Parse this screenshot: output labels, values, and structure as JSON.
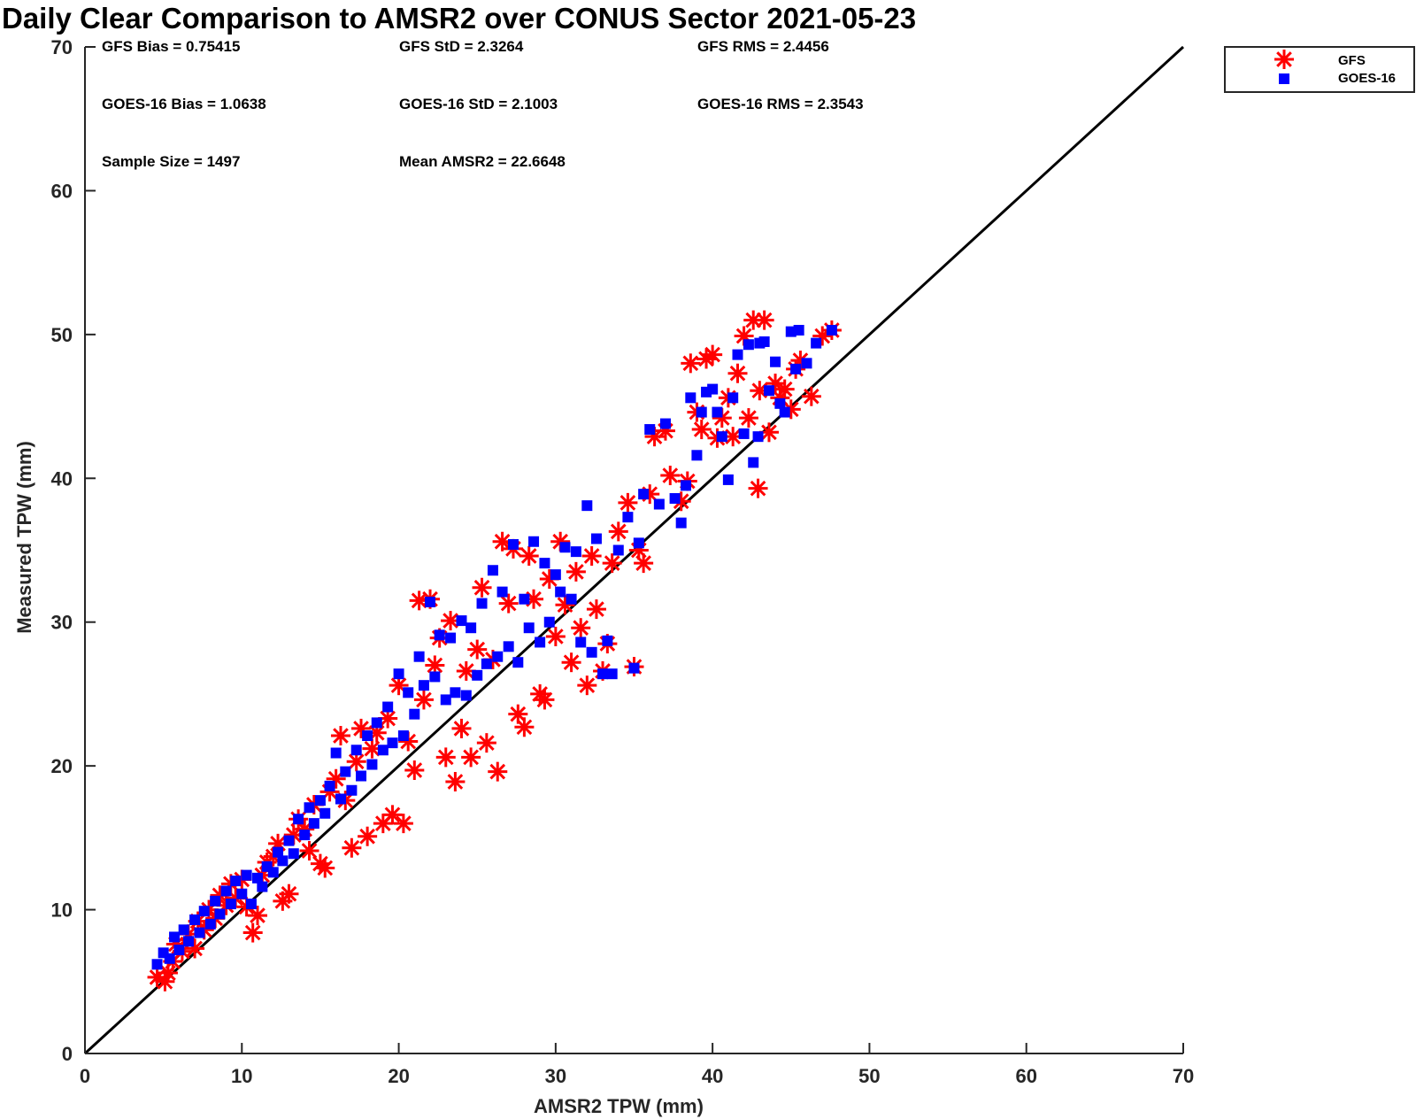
{
  "chart_data": {
    "type": "scatter",
    "title": "Daily Clear Comparison to AMSR2 over CONUS Sector 2021-05-23",
    "xlabel": "AMSR2 TPW (mm)",
    "ylabel": "Measured TPW (mm)",
    "xlim": [
      0,
      70
    ],
    "ylim": [
      0,
      70
    ],
    "xticks": [
      0,
      10,
      20,
      30,
      40,
      50,
      60,
      70
    ],
    "yticks": [
      0,
      10,
      20,
      30,
      40,
      50,
      60,
      70
    ],
    "grid": false,
    "legend_position": "outside-top-right",
    "reference_line": {
      "x": [
        0,
        70
      ],
      "y": [
        0,
        70
      ],
      "color": "#000000"
    },
    "stats": [
      {
        "text": "GFS Bias = 0.75415",
        "row": 0,
        "col": 0
      },
      {
        "text": "GFS StD = 2.3264",
        "row": 0,
        "col": 1
      },
      {
        "text": "GFS RMS = 2.4456",
        "row": 0,
        "col": 2
      },
      {
        "text": "GOES-16 Bias = 1.0638",
        "row": 1,
        "col": 0
      },
      {
        "text": "GOES-16 StD = 2.1003",
        "row": 1,
        "col": 1
      },
      {
        "text": "GOES-16 RMS = 2.3543",
        "row": 1,
        "col": 2
      },
      {
        "text": "Sample Size = 1497",
        "row": 2,
        "col": 0
      },
      {
        "text": "Mean AMSR2 = 22.6648",
        "row": 2,
        "col": 1
      }
    ],
    "series": [
      {
        "name": "GFS",
        "marker": "asterisk",
        "color": "#ff0000",
        "points": [
          [
            4.6,
            5.3
          ],
          [
            5.1,
            5.0
          ],
          [
            5.3,
            5.6
          ],
          [
            5.6,
            6.4
          ],
          [
            5.8,
            7.6
          ],
          [
            6.2,
            7.1
          ],
          [
            6.6,
            8.3
          ],
          [
            7.0,
            7.3
          ],
          [
            7.2,
            9.2
          ],
          [
            7.6,
            8.6
          ],
          [
            7.9,
            10.0
          ],
          [
            8.3,
            9.4
          ],
          [
            8.6,
            11.0
          ],
          [
            9.0,
            10.3
          ],
          [
            9.3,
            11.8
          ],
          [
            9.6,
            10.8
          ],
          [
            10.0,
            12.1
          ],
          [
            10.3,
            10.2
          ],
          [
            10.7,
            8.4
          ],
          [
            11.0,
            9.6
          ],
          [
            11.3,
            12.4
          ],
          [
            11.6,
            13.3
          ],
          [
            12.0,
            13.7
          ],
          [
            12.3,
            14.6
          ],
          [
            12.6,
            10.6
          ],
          [
            13.0,
            11.1
          ],
          [
            13.3,
            15.2
          ],
          [
            13.6,
            16.3
          ],
          [
            14.0,
            15.6
          ],
          [
            14.3,
            14.1
          ],
          [
            14.6,
            17.3
          ],
          [
            15.0,
            13.2
          ],
          [
            15.3,
            12.9
          ],
          [
            15.6,
            18.2
          ],
          [
            16.0,
            19.1
          ],
          [
            16.3,
            22.1
          ],
          [
            16.6,
            17.6
          ],
          [
            17.0,
            14.3
          ],
          [
            17.3,
            20.3
          ],
          [
            17.6,
            22.6
          ],
          [
            18.0,
            15.1
          ],
          [
            18.3,
            21.2
          ],
          [
            18.6,
            22.3
          ],
          [
            19.0,
            16.0
          ],
          [
            19.3,
            23.3
          ],
          [
            19.6,
            16.6
          ],
          [
            20.0,
            25.6
          ],
          [
            20.3,
            16.0
          ],
          [
            20.6,
            21.7
          ],
          [
            21.0,
            19.7
          ],
          [
            21.3,
            31.5
          ],
          [
            21.6,
            24.6
          ],
          [
            22.0,
            31.6
          ],
          [
            22.3,
            27.0
          ],
          [
            22.6,
            28.9
          ],
          [
            23.0,
            20.6
          ],
          [
            23.3,
            30.1
          ],
          [
            23.6,
            18.9
          ],
          [
            24.0,
            22.6
          ],
          [
            24.3,
            26.6
          ],
          [
            24.6,
            20.6
          ],
          [
            25.0,
            28.1
          ],
          [
            25.3,
            32.4
          ],
          [
            25.6,
            21.6
          ],
          [
            26.0,
            27.4
          ],
          [
            26.3,
            19.6
          ],
          [
            26.6,
            35.6
          ],
          [
            27.0,
            31.3
          ],
          [
            27.3,
            35.1
          ],
          [
            27.6,
            23.6
          ],
          [
            28.0,
            22.7
          ],
          [
            28.3,
            34.6
          ],
          [
            28.6,
            31.6
          ],
          [
            29.0,
            25.0
          ],
          [
            29.3,
            24.6
          ],
          [
            29.6,
            33.0
          ],
          [
            30.0,
            29.0
          ],
          [
            30.3,
            35.6
          ],
          [
            30.6,
            31.2
          ],
          [
            31.0,
            27.2
          ],
          [
            31.3,
            33.5
          ],
          [
            31.6,
            29.6
          ],
          [
            32.0,
            25.6
          ],
          [
            32.3,
            34.6
          ],
          [
            32.6,
            30.9
          ],
          [
            33.0,
            26.6
          ],
          [
            33.3,
            28.5
          ],
          [
            33.6,
            34.1
          ],
          [
            34.0,
            36.3
          ],
          [
            34.6,
            38.3
          ],
          [
            35.0,
            26.9
          ],
          [
            35.3,
            35.0
          ],
          [
            35.6,
            34.1
          ],
          [
            36.0,
            38.9
          ],
          [
            36.3,
            42.9
          ],
          [
            37.0,
            43.3
          ],
          [
            37.3,
            40.2
          ],
          [
            38.0,
            38.4
          ],
          [
            38.4,
            39.8
          ],
          [
            38.6,
            48.0
          ],
          [
            39.0,
            44.6
          ],
          [
            39.3,
            43.4
          ],
          [
            39.6,
            48.3
          ],
          [
            40.0,
            48.6
          ],
          [
            40.3,
            42.8
          ],
          [
            40.6,
            44.2
          ],
          [
            41.0,
            45.6
          ],
          [
            41.3,
            42.9
          ],
          [
            41.6,
            47.3
          ],
          [
            42.0,
            49.9
          ],
          [
            42.3,
            44.2
          ],
          [
            42.6,
            51.0
          ],
          [
            42.9,
            39.3
          ],
          [
            43.0,
            46.1
          ],
          [
            43.3,
            51.0
          ],
          [
            43.6,
            43.2
          ],
          [
            44.0,
            46.6
          ],
          [
            44.3,
            45.6
          ],
          [
            44.6,
            46.2
          ],
          [
            45.0,
            44.8
          ],
          [
            45.3,
            47.6
          ],
          [
            45.6,
            48.2
          ],
          [
            46.3,
            45.7
          ],
          [
            47.0,
            49.9
          ],
          [
            47.6,
            50.3
          ]
        ]
      },
      {
        "name": "GOES-16",
        "marker": "square",
        "color": "#0000ff",
        "points": [
          [
            4.6,
            6.2
          ],
          [
            5.0,
            7.0
          ],
          [
            5.4,
            6.6
          ],
          [
            5.7,
            8.1
          ],
          [
            6.0,
            7.2
          ],
          [
            6.3,
            8.6
          ],
          [
            6.6,
            7.8
          ],
          [
            7.0,
            9.3
          ],
          [
            7.3,
            8.4
          ],
          [
            7.6,
            9.9
          ],
          [
            8.0,
            9.0
          ],
          [
            8.3,
            10.6
          ],
          [
            8.6,
            9.7
          ],
          [
            9.0,
            11.3
          ],
          [
            9.3,
            10.4
          ],
          [
            9.6,
            12.0
          ],
          [
            10.0,
            11.1
          ],
          [
            10.3,
            12.4
          ],
          [
            10.6,
            10.4
          ],
          [
            11.0,
            12.2
          ],
          [
            11.3,
            11.6
          ],
          [
            11.6,
            13.0
          ],
          [
            12.0,
            12.6
          ],
          [
            12.3,
            14.0
          ],
          [
            12.6,
            13.4
          ],
          [
            13.0,
            14.8
          ],
          [
            13.3,
            13.9
          ],
          [
            13.6,
            16.3
          ],
          [
            14.0,
            15.2
          ],
          [
            14.3,
            17.1
          ],
          [
            14.6,
            16.0
          ],
          [
            15.0,
            17.6
          ],
          [
            15.3,
            16.7
          ],
          [
            15.6,
            18.6
          ],
          [
            16.0,
            20.9
          ],
          [
            16.3,
            17.7
          ],
          [
            16.6,
            19.6
          ],
          [
            17.0,
            18.3
          ],
          [
            17.3,
            21.1
          ],
          [
            17.6,
            19.3
          ],
          [
            18.0,
            22.1
          ],
          [
            18.3,
            20.1
          ],
          [
            18.6,
            23.0
          ],
          [
            19.0,
            21.1
          ],
          [
            19.3,
            24.1
          ],
          [
            19.6,
            21.6
          ],
          [
            20.0,
            26.4
          ],
          [
            20.3,
            22.1
          ],
          [
            20.6,
            25.1
          ],
          [
            21.0,
            23.6
          ],
          [
            21.3,
            27.6
          ],
          [
            21.6,
            25.6
          ],
          [
            22.0,
            31.4
          ],
          [
            22.3,
            26.2
          ],
          [
            22.6,
            29.1
          ],
          [
            23.0,
            24.6
          ],
          [
            23.3,
            28.9
          ],
          [
            23.6,
            25.1
          ],
          [
            24.0,
            30.1
          ],
          [
            24.3,
            24.9
          ],
          [
            24.6,
            29.6
          ],
          [
            25.0,
            26.3
          ],
          [
            25.3,
            31.3
          ],
          [
            25.6,
            27.1
          ],
          [
            26.0,
            33.6
          ],
          [
            26.3,
            27.6
          ],
          [
            26.6,
            32.1
          ],
          [
            27.0,
            28.3
          ],
          [
            27.3,
            35.4
          ],
          [
            27.6,
            27.2
          ],
          [
            28.0,
            31.6
          ],
          [
            28.3,
            29.6
          ],
          [
            28.6,
            35.6
          ],
          [
            29.0,
            28.6
          ],
          [
            29.3,
            34.1
          ],
          [
            29.6,
            30.0
          ],
          [
            30.0,
            33.3
          ],
          [
            30.3,
            32.1
          ],
          [
            30.6,
            35.2
          ],
          [
            31.0,
            31.6
          ],
          [
            31.3,
            34.9
          ],
          [
            31.6,
            28.6
          ],
          [
            32.0,
            38.1
          ],
          [
            32.3,
            27.9
          ],
          [
            32.6,
            35.8
          ],
          [
            33.0,
            26.4
          ],
          [
            33.3,
            28.7
          ],
          [
            33.6,
            26.4
          ],
          [
            34.0,
            35.0
          ],
          [
            34.6,
            37.3
          ],
          [
            35.0,
            26.8
          ],
          [
            35.3,
            35.5
          ],
          [
            35.6,
            38.9
          ],
          [
            36.0,
            43.4
          ],
          [
            36.6,
            38.2
          ],
          [
            37.0,
            43.8
          ],
          [
            37.6,
            38.6
          ],
          [
            38.0,
            36.9
          ],
          [
            38.3,
            39.5
          ],
          [
            38.6,
            45.6
          ],
          [
            39.0,
            41.6
          ],
          [
            39.3,
            44.6
          ],
          [
            39.6,
            46.0
          ],
          [
            40.0,
            46.2
          ],
          [
            40.3,
            44.6
          ],
          [
            40.6,
            42.9
          ],
          [
            41.0,
            39.9
          ],
          [
            41.3,
            45.6
          ],
          [
            41.6,
            48.6
          ],
          [
            42.0,
            43.1
          ],
          [
            42.3,
            49.3
          ],
          [
            42.6,
            41.1
          ],
          [
            42.9,
            42.9
          ],
          [
            43.0,
            49.4
          ],
          [
            43.3,
            49.5
          ],
          [
            43.6,
            46.1
          ],
          [
            44.0,
            48.1
          ],
          [
            44.3,
            45.2
          ],
          [
            44.6,
            44.6
          ],
          [
            45.0,
            50.2
          ],
          [
            45.3,
            47.6
          ],
          [
            45.5,
            50.3
          ],
          [
            46.0,
            48.0
          ],
          [
            46.6,
            49.4
          ],
          [
            47.6,
            50.3
          ]
        ]
      }
    ]
  }
}
